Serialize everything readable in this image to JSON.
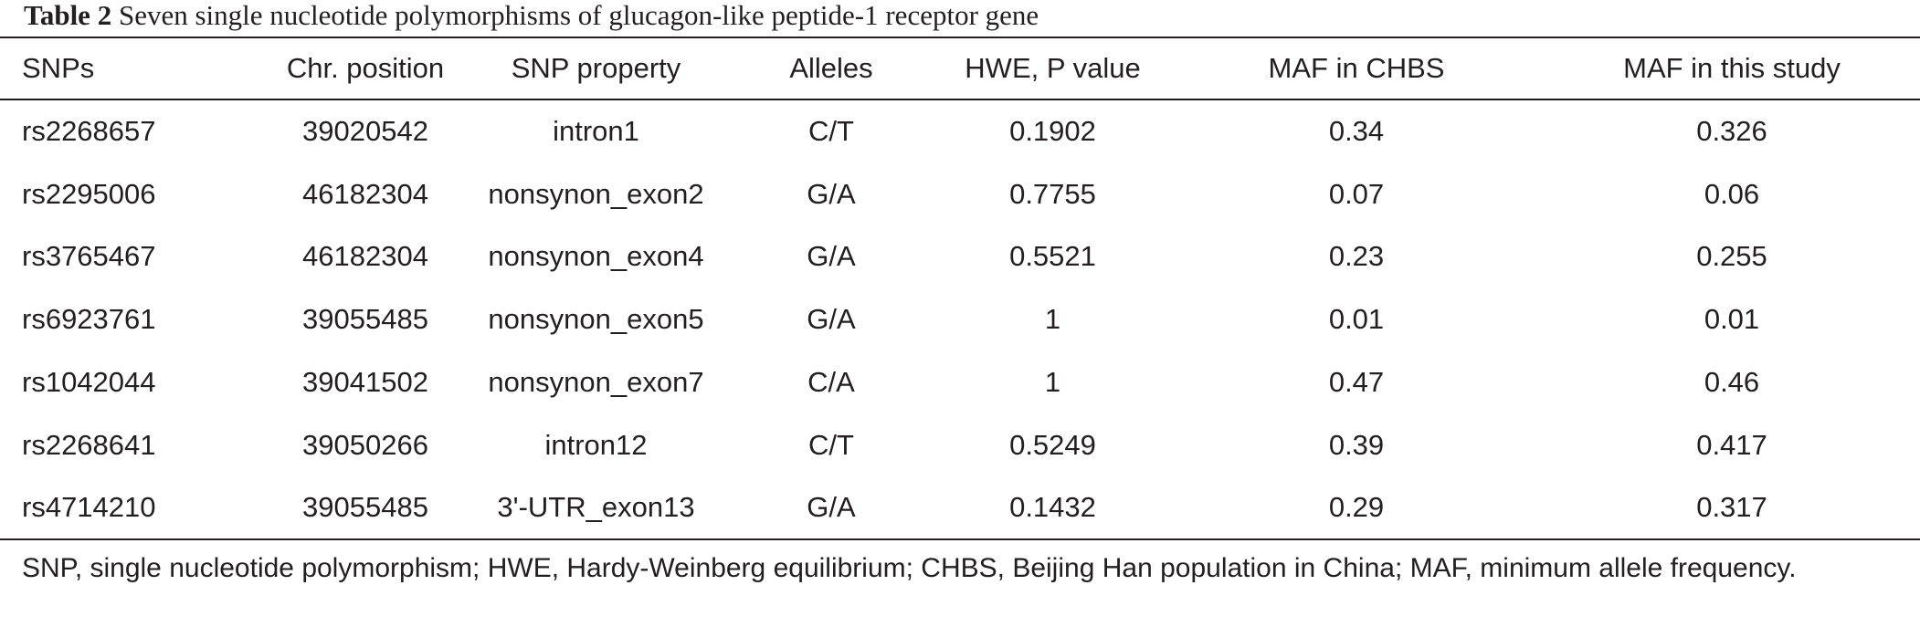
{
  "caption": {
    "label": "Table 2",
    "title": "Seven single nucleotide polymorphisms of glucagon-like peptide-1 receptor gene"
  },
  "table": {
    "headers": [
      "SNPs",
      "Chr. position",
      "SNP property",
      "Alleles",
      "HWE, P value",
      "MAF in CHBS",
      "MAF in this study"
    ],
    "rows": [
      [
        "rs2268657",
        "39020542",
        "intron1",
        "C/T",
        "0.1902",
        "0.34",
        "0.326"
      ],
      [
        "rs2295006",
        "46182304",
        "nonsynon_exon2",
        "G/A",
        "0.7755",
        "0.07",
        "0.06"
      ],
      [
        "rs3765467",
        "46182304",
        "nonsynon_exon4",
        "G/A",
        "0.5521",
        "0.23",
        "0.255"
      ],
      [
        "rs6923761",
        "39055485",
        "nonsynon_exon5",
        "G/A",
        "1",
        "0.01",
        "0.01"
      ],
      [
        "rs1042044",
        "39041502",
        "nonsynon_exon7",
        "C/A",
        "1",
        "0.47",
        "0.46"
      ],
      [
        "rs2268641",
        "39050266",
        "intron12",
        "C/T",
        "0.5249",
        "0.39",
        "0.417"
      ],
      [
        "rs4714210",
        "39055485",
        "3'-UTR_exon13",
        "G/A",
        "0.1432",
        "0.29",
        "0.317"
      ]
    ]
  },
  "footnote": "SNP, single nucleotide polymorphism; HWE, Hardy-Weinberg equilibrium; CHBS, Beijing Han population in China; MAF, minimum allele frequency."
}
